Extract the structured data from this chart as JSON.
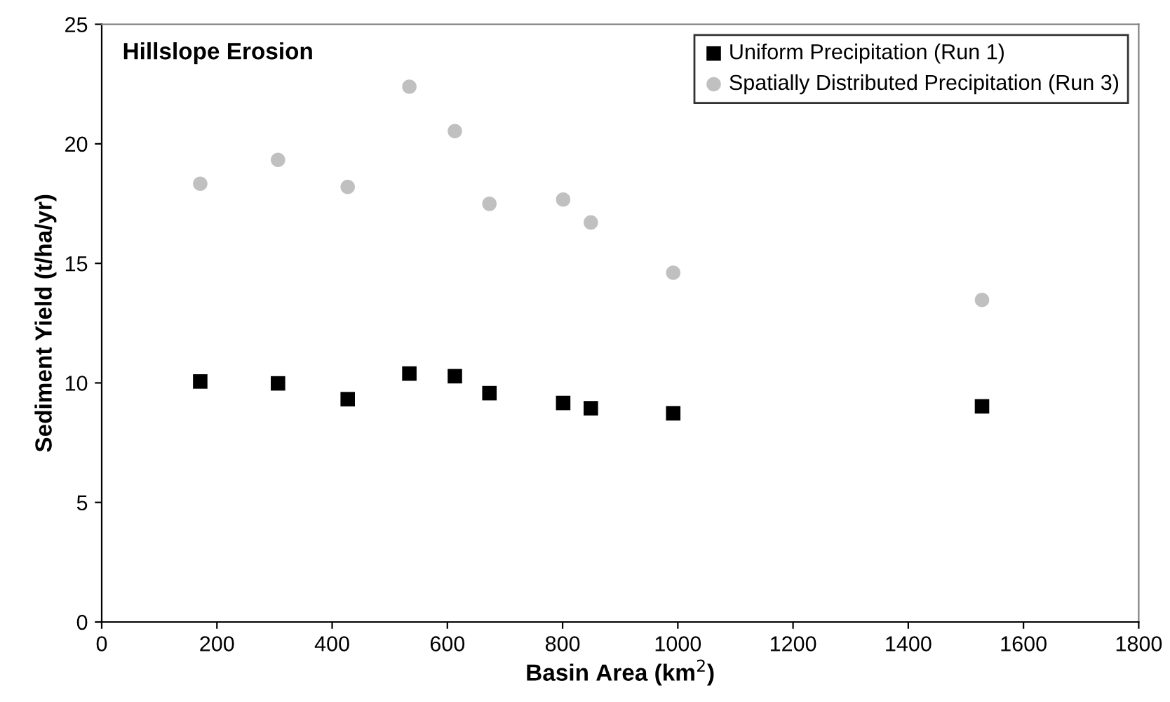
{
  "chart_data": {
    "type": "scatter",
    "title": "Hillslope Erosion",
    "xlabel": "Basin Area (km$^{2}$)",
    "ylabel": "Sediment Yield (t/ha/yr)",
    "x": [
      171,
      306,
      427,
      534,
      613,
      673,
      801,
      849,
      992,
      1528
    ],
    "series": [
      {
        "name": "Uniform Precipitation (Run 1)",
        "color": "#000000",
        "marker": "square",
        "values": [
          10.06,
          9.98,
          9.32,
          10.39,
          10.28,
          9.57,
          9.16,
          8.94,
          8.73,
          9.02
        ]
      },
      {
        "name": "Spatially Distributed Precipitation (Run 3)",
        "color": "#c0c0c0",
        "marker": "circle",
        "values": [
          18.33,
          19.33,
          18.2,
          22.39,
          20.53,
          17.49,
          17.67,
          16.71,
          14.61,
          13.47
        ]
      }
    ],
    "xlim": [
      0,
      1800
    ],
    "xticks": [
      0,
      200,
      400,
      600,
      800,
      1000,
      1200,
      1400,
      1600,
      1800
    ],
    "ylim": [
      0,
      25
    ],
    "yticks": [
      0,
      5,
      10,
      15,
      20,
      25
    ],
    "grid": false,
    "legend": "top right"
  }
}
